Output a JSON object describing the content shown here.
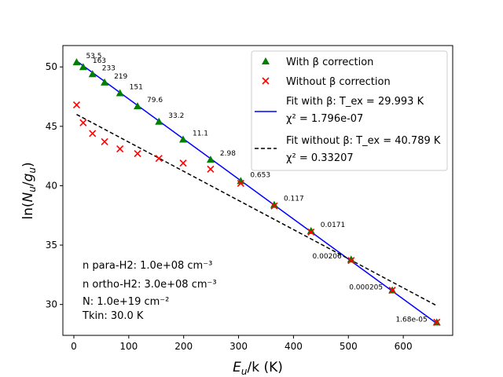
{
  "chart_data": {
    "type": "scatter",
    "xlabel_main": "E",
    "xlabel_sub": "u",
    "xlabel_rest": "/k (K)",
    "ylabel": "ln(N_u/g_u)",
    "xlim": [
      -20,
      690
    ],
    "ylim": [
      27.4,
      51.8
    ],
    "xticks": [
      0,
      100,
      200,
      300,
      400,
      500,
      600
    ],
    "yticks": [
      30,
      35,
      40,
      45,
      50
    ],
    "colors": {
      "with": "#008000",
      "without": "#ff0000",
      "fit_with": "#0000ff",
      "fit_without": "#000000"
    },
    "series": [
      {
        "name": "With β correction",
        "marker": "triangle",
        "x": [
          5,
          17,
          34,
          56,
          84,
          116,
          155,
          199,
          249,
          304,
          365,
          432,
          505,
          580,
          661
        ],
        "y": [
          50.4,
          50.0,
          49.4,
          48.7,
          47.8,
          46.7,
          45.4,
          43.9,
          42.2,
          40.4,
          38.4,
          36.2,
          33.8,
          31.2,
          28.5
        ],
        "labels": [
          "53.5",
          "163",
          "233",
          "219",
          "151",
          "79.6",
          "33.2",
          "11.1",
          "2.98",
          "0.653",
          "0.117",
          "0.0171",
          "0.00206",
          "0.000205",
          "1.68e-05"
        ]
      },
      {
        "name": "Without β correction",
        "marker": "x",
        "x": [
          5,
          17,
          34,
          56,
          84,
          116,
          155,
          199,
          249,
          304,
          365,
          432,
          505,
          580,
          661
        ],
        "y": [
          46.8,
          45.3,
          44.4,
          43.7,
          43.1,
          42.7,
          42.3,
          41.9,
          41.4,
          40.2,
          38.3,
          36.1,
          33.7,
          31.2,
          28.5
        ]
      }
    ],
    "fits": [
      {
        "name": "fit_with",
        "style": "solid",
        "x": [
          5,
          661
        ],
        "y": [
          50.5,
          28.4
        ]
      },
      {
        "name": "fit_without",
        "style": "dashed",
        "x": [
          5,
          661
        ],
        "y": [
          46.0,
          29.9
        ]
      }
    ],
    "legend": {
      "placement": "top-right",
      "with_label": "With β correction",
      "without_label": "Without β correction",
      "fit_with_line1": "Fit with β: T_ex = 29.993 K",
      "fit_with_line2": "χ² = 1.796e-07",
      "fit_without_line1": "Fit without β: T_ex = 40.789 K",
      "fit_without_line2": "χ² = 0.33207"
    },
    "annotations": [
      "n para-H2: 1.0e+08 cm⁻³",
      "n ortho-H2: 3.0e+08 cm⁻³",
      "N: 1.0e+19 cm⁻²",
      "Tkin: 30.0 K"
    ]
  }
}
